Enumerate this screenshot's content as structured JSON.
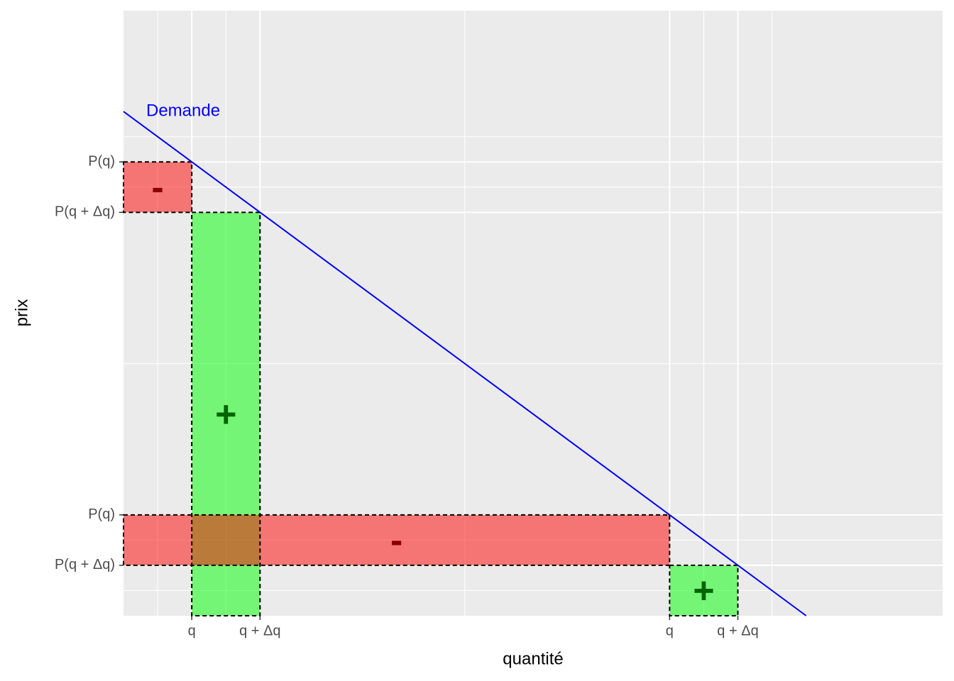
{
  "chart_data": {
    "type": "line",
    "x_label": "quantité",
    "y_label": "prix",
    "x": [
      0,
      10
    ],
    "series": [
      {
        "name": "Demande",
        "color": "#0000ff",
        "values": [
          10,
          0
        ]
      }
    ],
    "rects": [
      {
        "x": [
          0,
          1
        ],
        "y": [
          8,
          9
        ],
        "fill": "#ff0000",
        "sign": "-",
        "sign_color": "#8b0000"
      },
      {
        "x": [
          1,
          2
        ],
        "y": [
          0,
          8
        ],
        "fill": "#00ff00",
        "sign": "+",
        "sign_color": "#006400"
      },
      {
        "x": [
          0,
          8
        ],
        "y": [
          1,
          2
        ],
        "fill": "#ff0000",
        "sign": "-",
        "sign_color": "#8b0000"
      },
      {
        "x": [
          8,
          9
        ],
        "y": [
          0,
          1
        ],
        "fill": "#00ff00",
        "sign": "+",
        "sign_color": "#006400"
      }
    ],
    "xlim": [
      0,
      12
    ],
    "ylim": [
      0,
      12
    ],
    "xticks": [
      {
        "value": 1,
        "label": "q"
      },
      {
        "value": 2,
        "label": "q + Δq"
      },
      {
        "value": 8,
        "label": "q"
      },
      {
        "value": 9,
        "label": "q + Δq"
      }
    ],
    "yticks": [
      {
        "value": 9,
        "label": "P(q)"
      },
      {
        "value": 8,
        "label": "P(q + Δq)"
      },
      {
        "value": 2,
        "label": "P(q)"
      },
      {
        "value": 1,
        "label": "P(q + Δq)"
      }
    ],
    "x_minor": [
      0.5,
      1.5,
      5,
      8.5,
      9.5
    ],
    "y_minor": [
      0.5,
      1.5,
      5,
      8.5,
      9.5
    ],
    "grid": true
  }
}
